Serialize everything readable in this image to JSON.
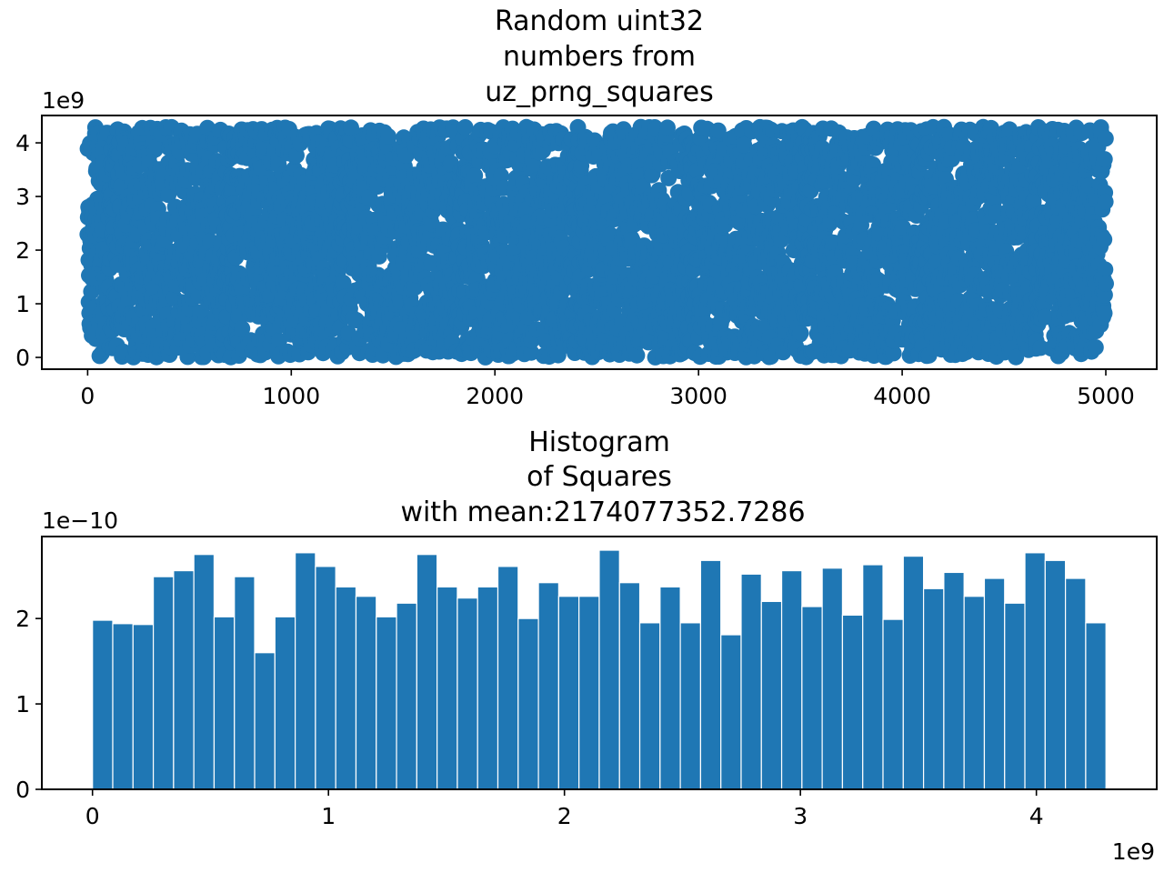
{
  "chart_data": [
    {
      "type": "scatter",
      "title_lines": [
        "Random uint32",
        "numbers from",
        "uz_prng_squares"
      ],
      "xlabel": "",
      "ylabel": "",
      "xlim": [
        -225,
        5250
      ],
      "ylim": [
        -220000000,
        4510000000
      ],
      "x_ticks": [
        0,
        1000,
        2000,
        3000,
        4000,
        5000
      ],
      "x_tick_labels": [
        "0",
        "1000",
        "2000",
        "3000",
        "4000",
        "5000"
      ],
      "y_ticks": [
        0,
        1000000000,
        2000000000,
        3000000000,
        4000000000
      ],
      "y_tick_labels": [
        "0",
        "1",
        "2",
        "3",
        "4"
      ],
      "y_offset_label": "1e9",
      "grid": false,
      "color": "#1f77b4",
      "points": {
        "count": 5000,
        "x_start": 0,
        "x_end": 5000,
        "y_min": 0,
        "y_max": 4294967295,
        "distribution": "uniform"
      }
    },
    {
      "type": "bar",
      "title_lines": [
        "Histogram",
        "of Squares",
        "with mean:2174077352.7286"
      ],
      "xlabel": "",
      "ylabel": "",
      "xlim": [
        -214700000,
        4510000000
      ],
      "ylim": [
        0,
        2.96e-10
      ],
      "x_ticks": [
        0,
        1000000000,
        2000000000,
        3000000000,
        4000000000
      ],
      "x_tick_labels": [
        "0",
        "1",
        "2",
        "3",
        "4"
      ],
      "x_offset_label": "1e9",
      "y_ticks": [
        0,
        1e-10,
        2e-10
      ],
      "y_tick_labels": [
        "0",
        "1",
        "2"
      ],
      "y_offset_label": "1e−10",
      "grid": false,
      "color": "#1f77b4",
      "bin_start": 0,
      "bin_end": 4294967295,
      "values": [
        1.98e-10,
        1.94e-10,
        1.93e-10,
        2.49e-10,
        2.56e-10,
        2.75e-10,
        2.02e-10,
        2.49e-10,
        1.6e-10,
        2.02e-10,
        2.77e-10,
        2.61e-10,
        2.37e-10,
        2.26e-10,
        2.02e-10,
        2.18e-10,
        2.75e-10,
        2.37e-10,
        2.24e-10,
        2.37e-10,
        2.61e-10,
        2e-10,
        2.42e-10,
        2.26e-10,
        2.26e-10,
        2.8e-10,
        2.42e-10,
        1.95e-10,
        2.37e-10,
        1.95e-10,
        2.68e-10,
        1.81e-10,
        2.52e-10,
        2.2e-10,
        2.56e-10,
        2.14e-10,
        2.59e-10,
        2.04e-10,
        2.63e-10,
        1.99e-10,
        2.73e-10,
        2.35e-10,
        2.54e-10,
        2.26e-10,
        2.47e-10,
        2.18e-10,
        2.77e-10,
        2.68e-10,
        2.47e-10,
        1.95e-10
      ]
    }
  ]
}
